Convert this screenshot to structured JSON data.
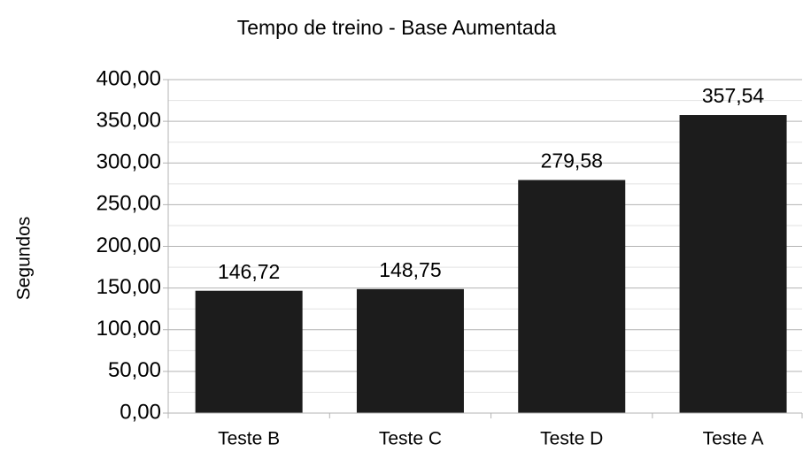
{
  "chart_data": {
    "type": "bar",
    "title": "Tempo de treino - Base Aumentada",
    "y_label": "Segundos",
    "categories": [
      "Teste B",
      "Teste C",
      "Teste D",
      "Teste A"
    ],
    "values": [
      146.72,
      148.75,
      279.58,
      357.54
    ],
    "value_labels": [
      "146,72",
      "148,75",
      "279,58",
      "357,54"
    ],
    "color": "#1c1c1c",
    "ylim": [
      0,
      400
    ],
    "yticks": [
      {
        "value": 0,
        "label": "0,00"
      },
      {
        "value": 50,
        "label": "50,00"
      },
      {
        "value": 100,
        "label": "100,00"
      },
      {
        "value": 150,
        "label": "150,00"
      },
      {
        "value": 200,
        "label": "200,00"
      },
      {
        "value": 250,
        "label": "250,00"
      },
      {
        "value": 300,
        "label": "300,00"
      },
      {
        "value": 350,
        "label": "350,00"
      },
      {
        "value": 400,
        "label": "400,00"
      }
    ],
    "minor_yticks": [
      25,
      75,
      125,
      175,
      225,
      275,
      325,
      375
    ],
    "grid": true
  }
}
